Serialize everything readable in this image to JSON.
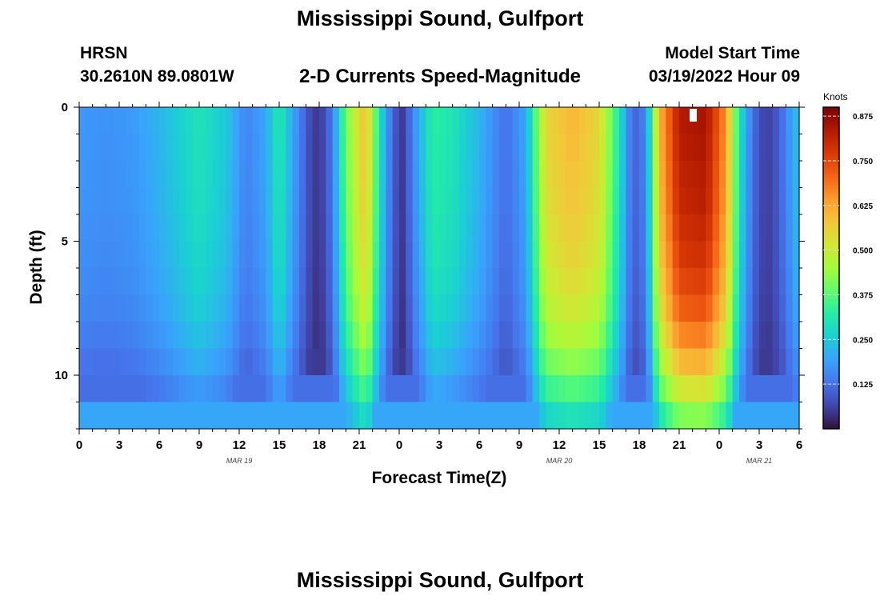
{
  "header": {
    "title": "Mississippi Sound, Gulfport",
    "station": "HRSN",
    "coords": "30.2610N  89.0801W",
    "subtitle": "2-D Currents Speed-Magnitude",
    "model_start_label": "Model Start Time",
    "model_start_value": "03/19/2022 Hour 09",
    "title_repeat": "Mississippi Sound, Gulfport"
  },
  "chart_data": {
    "type": "heatmap",
    "xlabel": "Forecast Time(Z)",
    "ylabel": "Depth (ft)",
    "x_ticks": [
      "0",
      "3",
      "6",
      "9",
      "12",
      "15",
      "18",
      "21",
      "0",
      "3",
      "6",
      "9",
      "12",
      "15",
      "18",
      "21",
      "0",
      "3",
      "6"
    ],
    "date_labels": [
      {
        "text": "MAR 19",
        "hour": 12
      },
      {
        "text": "MAR 20",
        "hour": 36
      },
      {
        "text": "MAR 21",
        "hour": 51
      }
    ],
    "xlim": [
      0,
      54
    ],
    "ylim": [
      0,
      12
    ],
    "y_ticks": [
      0,
      5,
      10
    ],
    "colorbar": {
      "title": "Knots",
      "range": [
        0.0,
        0.9
      ],
      "ticks": [
        "0.875",
        "0.750",
        "0.625",
        "0.500",
        "0.375",
        "0.250",
        "0.125"
      ],
      "colors": [
        "#30123b",
        "#4145ab",
        "#4675ed",
        "#39a2fc",
        "#1bcfd4",
        "#24eca6",
        "#61fc6c",
        "#a4fc3b",
        "#d1e834",
        "#f3c63a",
        "#fe9b2d",
        "#f36315",
        "#d93806",
        "#b11901",
        "#7a0402"
      ]
    },
    "depth_levels": 12,
    "surface_speed_knots": [
      {
        "hour": 0,
        "value": 0.18
      },
      {
        "hour": 2,
        "value": 0.17
      },
      {
        "hour": 4,
        "value": 0.18
      },
      {
        "hour": 6,
        "value": 0.22
      },
      {
        "hour": 9,
        "value": 0.3
      },
      {
        "hour": 11,
        "value": 0.25
      },
      {
        "hour": 12.5,
        "value": 0.15
      },
      {
        "hour": 14,
        "value": 0.2
      },
      {
        "hour": 15,
        "value": 0.32
      },
      {
        "hour": 16,
        "value": 0.2
      },
      {
        "hour": 17.2,
        "value": 0.08
      },
      {
        "hour": 18,
        "value": 0.04
      },
      {
        "hour": 19,
        "value": 0.14
      },
      {
        "hour": 20,
        "value": 0.4
      },
      {
        "hour": 21.5,
        "value": 0.6
      },
      {
        "hour": 22.5,
        "value": 0.3
      },
      {
        "hour": 23.5,
        "value": 0.1
      },
      {
        "hour": 24.3,
        "value": 0.05
      },
      {
        "hour": 25,
        "value": 0.15
      },
      {
        "hour": 26.5,
        "value": 0.33
      },
      {
        "hour": 28,
        "value": 0.3
      },
      {
        "hour": 30,
        "value": 0.22
      },
      {
        "hour": 32,
        "value": 0.12
      },
      {
        "hour": 33.5,
        "value": 0.2
      },
      {
        "hour": 35,
        "value": 0.55
      },
      {
        "hour": 37,
        "value": 0.6
      },
      {
        "hour": 39,
        "value": 0.55
      },
      {
        "hour": 40.5,
        "value": 0.3
      },
      {
        "hour": 41.5,
        "value": 0.1
      },
      {
        "hour": 42.5,
        "value": 0.15
      },
      {
        "hour": 43.5,
        "value": 0.6
      },
      {
        "hour": 45,
        "value": 0.83
      },
      {
        "hour": 47,
        "value": 0.85
      },
      {
        "hour": 48.5,
        "value": 0.65
      },
      {
        "hour": 49.5,
        "value": 0.3
      },
      {
        "hour": 50.5,
        "value": 0.12
      },
      {
        "hour": 51.5,
        "value": 0.05
      },
      {
        "hour": 52.5,
        "value": 0.1
      },
      {
        "hour": 54,
        "value": 0.25
      }
    ],
    "speed_depth_factors": [
      1.0,
      0.99,
      0.98,
      0.97,
      0.95,
      0.93,
      0.9,
      0.86,
      0.8,
      0.72,
      0.62,
      0.5
    ],
    "bottom_speed_floor_knots": [
      0,
      0,
      0,
      0,
      0,
      0,
      0,
      0,
      0,
      0.05,
      0.12,
      0.2
    ]
  }
}
